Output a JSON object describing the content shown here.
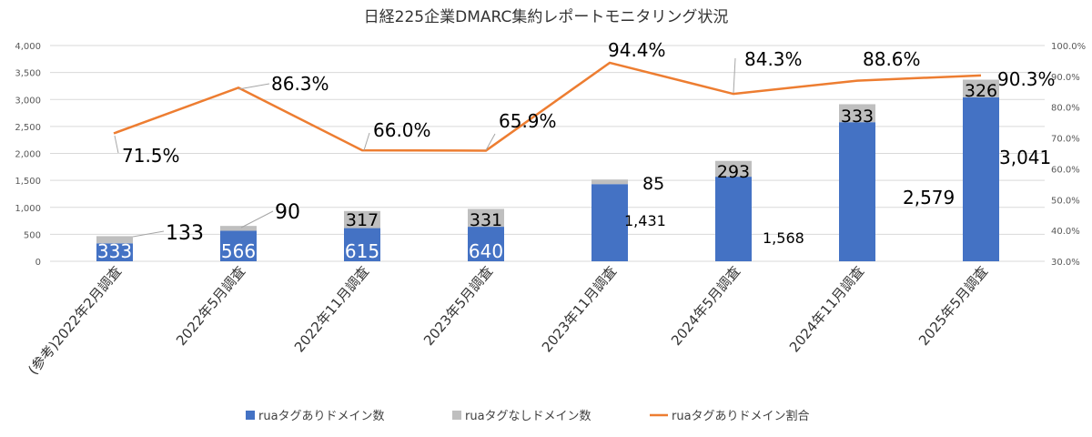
{
  "chart_data": {
    "type": "bar",
    "title": "日経225企業DMARC集約レポートモニタリング状況",
    "categories": [
      "(参考)2022年2月調査",
      "2022年5月調査",
      "2022年11月調査",
      "2023年5月調査",
      "2023年11月調査",
      "2024年5月調査",
      "2024年11月調査",
      "2025年5月調査"
    ],
    "series": [
      {
        "name": "ruaタグありドメイン数",
        "kind": "bar-stacked",
        "axis": "left",
        "color": "#4472C4",
        "values": [
          333,
          566,
          615,
          640,
          1431,
          1568,
          2579,
          3041
        ],
        "labels": [
          "333",
          "566",
          "615",
          "640",
          "1,431",
          "1,568",
          "2,579",
          "3,041"
        ]
      },
      {
        "name": "ruaタグなしドメイン数",
        "kind": "bar-stacked",
        "axis": "left",
        "color": "#BFBFBF",
        "values": [
          133,
          90,
          317,
          331,
          85,
          293,
          333,
          326
        ],
        "labels": [
          "133",
          "90",
          "317",
          "331",
          "85",
          "293",
          "333",
          "326"
        ]
      },
      {
        "name": "ruaタグありドメイン割合",
        "kind": "line",
        "axis": "right",
        "color": "#ED7D31",
        "values": [
          71.5,
          86.3,
          66.0,
          65.9,
          94.4,
          84.3,
          88.6,
          90.3
        ],
        "labels": [
          "71.5%",
          "86.3%",
          "66.0%",
          "65.9%",
          "94.4%",
          "84.3%",
          "88.6%",
          "90.3%"
        ]
      }
    ],
    "ylim": [
      0,
      4000
    ],
    "y_ticks": [
      "0",
      "500",
      "1,000",
      "1,500",
      "2,000",
      "2,500",
      "3,000",
      "3,500",
      "4,000"
    ],
    "y2lim": [
      30,
      100
    ],
    "y2_ticks": [
      "30.0%",
      "40.0%",
      "50.0%",
      "60.0%",
      "70.0%",
      "80.0%",
      "90.0%",
      "100.0%"
    ],
    "grid": true,
    "legend_position": "bottom"
  }
}
